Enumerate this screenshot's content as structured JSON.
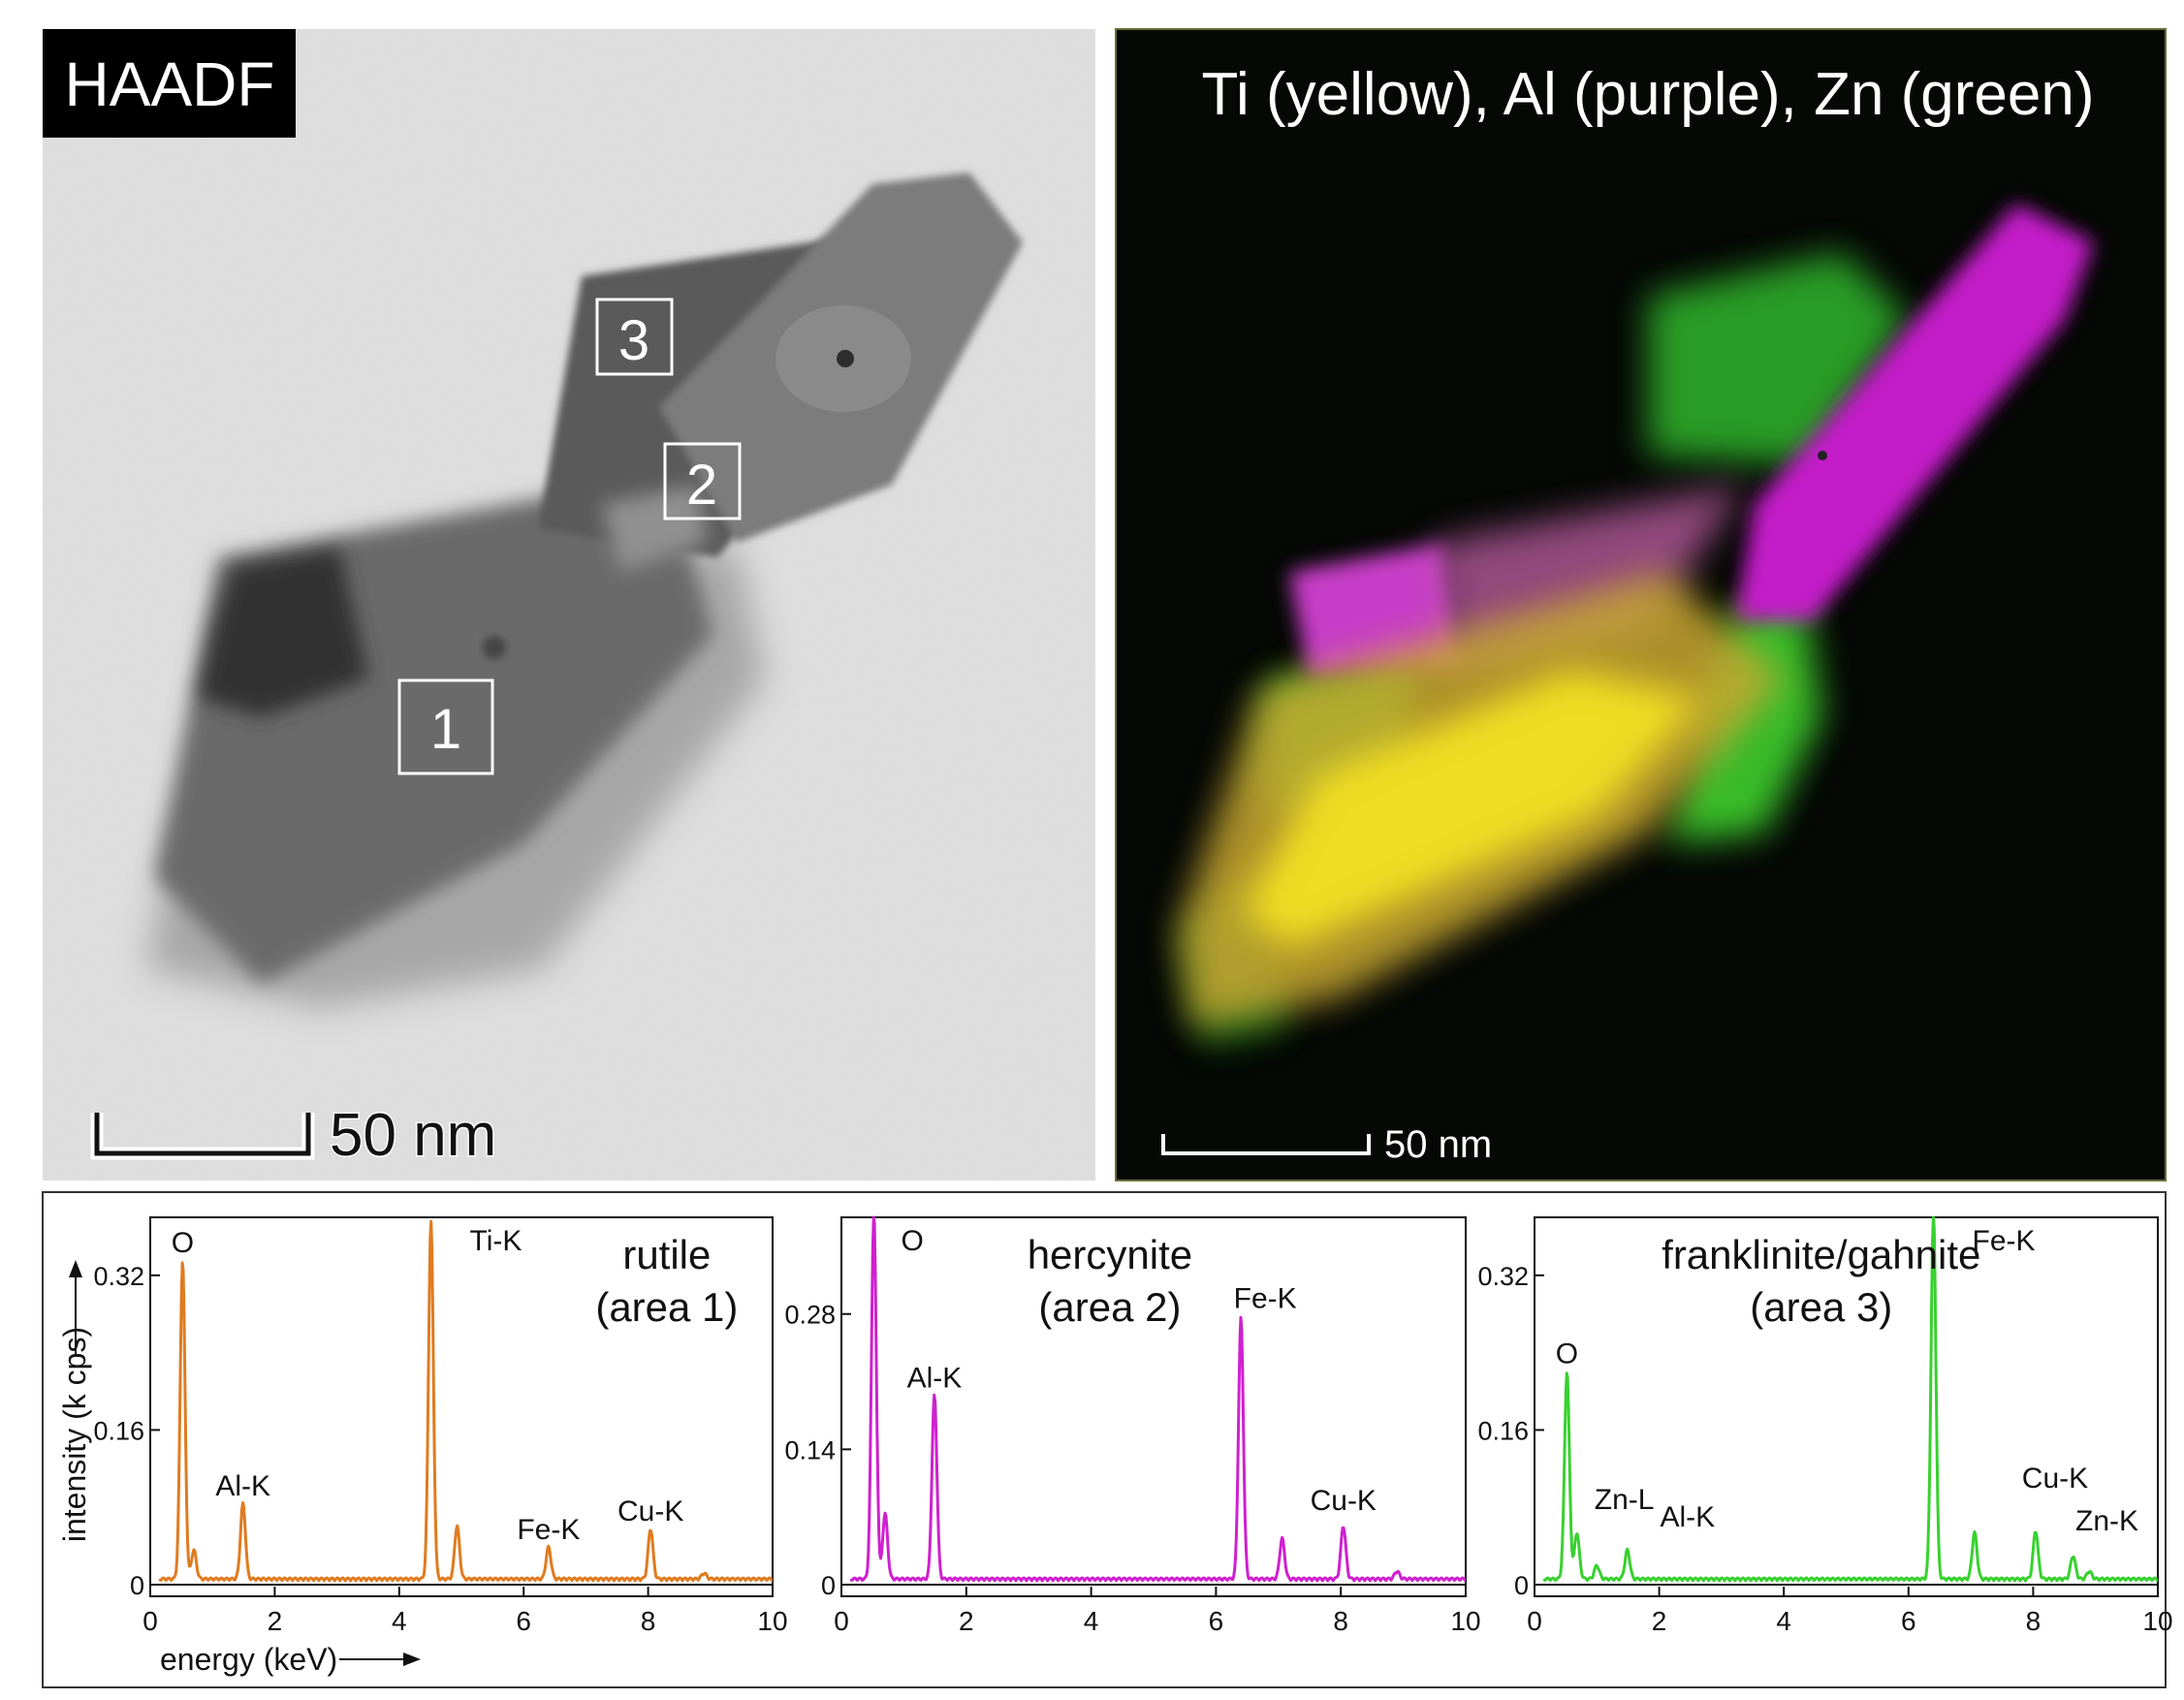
{
  "figure": {
    "haadf_panel": {
      "label": "HAADF",
      "area_labels": [
        "3",
        "2",
        "1"
      ],
      "scale_bar": "50 nm"
    },
    "map_panel": {
      "title": "Ti (yellow), Al (purple), Zn (green)",
      "scale_bar": "50 nm",
      "colors": {
        "Ti": "#f2e600",
        "Al": "#d21fd6",
        "Zn": "#3ccf2e"
      }
    }
  },
  "chart_data": [
    {
      "type": "line",
      "title": "rutile (area 1)",
      "title_lines": [
        "rutile",
        "(area 1)"
      ],
      "ylabel": "intensity (k cps)",
      "xlabel": "energy (keV)",
      "xlim": [
        0,
        10
      ],
      "ylim": [
        0,
        0.38
      ],
      "x_ticks": [
        "0",
        "2",
        "4",
        "6",
        "8",
        "10"
      ],
      "y_ticks": [
        {
          "v": 0,
          "label": "0"
        },
        {
          "v": 0.16,
          "label": "0.16"
        },
        {
          "v": 0.32,
          "label": "0.32"
        }
      ],
      "color": "#e07b1f",
      "series": [
        {
          "peaks": [
            [
              0.52,
              0.33
            ],
            [
              0.7,
              0.03
            ],
            [
              1.49,
              0.078
            ],
            [
              4.51,
              0.37
            ],
            [
              4.93,
              0.055
            ],
            [
              6.4,
              0.033
            ],
            [
              8.04,
              0.052
            ],
            [
              8.9,
              0.006
            ]
          ]
        }
      ],
      "annotations": [
        {
          "text": "O",
          "x": 0.52,
          "y": 0.33
        },
        {
          "text": "Al-K",
          "x": 1.49,
          "y": 0.078
        },
        {
          "text": "Ti-K",
          "x": 4.51,
          "y": 0.37
        },
        {
          "text": "Fe-K",
          "x": 6.4,
          "y": 0.033
        },
        {
          "text": "Cu-K",
          "x": 8.04,
          "y": 0.052
        }
      ]
    },
    {
      "type": "line",
      "title": "hercynite (area 2)",
      "title_lines": [
        "hercynite",
        "(area 2)"
      ],
      "xlim": [
        0,
        10
      ],
      "ylim": [
        0,
        0.38
      ],
      "x_ticks": [
        "0",
        "2",
        "4",
        "6",
        "8",
        "10"
      ],
      "y_ticks": [
        {
          "v": 0,
          "label": "0"
        },
        {
          "v": 0.14,
          "label": "0.14"
        },
        {
          "v": 0.28,
          "label": "0.28"
        }
      ],
      "color": "#cf20cf",
      "series": [
        {
          "peaks": [
            [
              0.52,
              0.38
            ],
            [
              0.7,
              0.068
            ],
            [
              1.49,
              0.19
            ],
            [
              6.4,
              0.27
            ],
            [
              7.06,
              0.042
            ],
            [
              8.04,
              0.055
            ],
            [
              8.9,
              0.008
            ]
          ]
        }
      ],
      "annotations": [
        {
          "text": "O",
          "x": 0.52,
          "y": 0.38
        },
        {
          "text": "Al-K",
          "x": 1.49,
          "y": 0.19
        },
        {
          "text": "Fe-K",
          "x": 6.4,
          "y": 0.27
        },
        {
          "text": "Cu-K",
          "x": 8.04,
          "y": 0.055
        }
      ]
    },
    {
      "type": "line",
      "title": "franklinite/gahnite (area 3)",
      "title_lines": [
        "franklinite/gahnite",
        "(area 3)"
      ],
      "xlim": [
        0,
        10
      ],
      "ylim": [
        0,
        0.38
      ],
      "x_ticks": [
        "0",
        "2",
        "4",
        "6",
        "8",
        "10"
      ],
      "y_ticks": [
        {
          "v": 0,
          "label": "0"
        },
        {
          "v": 0.16,
          "label": "0.16"
        },
        {
          "v": 0.32,
          "label": "0.32"
        }
      ],
      "color": "#38d12f",
      "series": [
        {
          "peaks": [
            [
              0.52,
              0.215
            ],
            [
              0.68,
              0.048
            ],
            [
              1.0,
              0.014
            ],
            [
              1.49,
              0.03
            ],
            [
              6.4,
              0.38
            ],
            [
              7.06,
              0.048
            ],
            [
              8.04,
              0.05
            ],
            [
              8.64,
              0.024
            ],
            [
              8.9,
              0.008
            ]
          ]
        }
      ],
      "annotations": [
        {
          "text": "O",
          "x": 0.52,
          "y": 0.215
        },
        {
          "text": "Zn-L",
          "x": 0.85,
          "y": 0.048
        },
        {
          "text": "Al-K",
          "x": 1.49,
          "y": 0.03
        },
        {
          "text": "Fe-K",
          "x": 6.4,
          "y": 0.38
        },
        {
          "text": "Cu-K",
          "x": 8.04,
          "y": 0.05
        },
        {
          "text": "Zn-K",
          "x": 8.64,
          "y": 0.024
        }
      ]
    }
  ]
}
